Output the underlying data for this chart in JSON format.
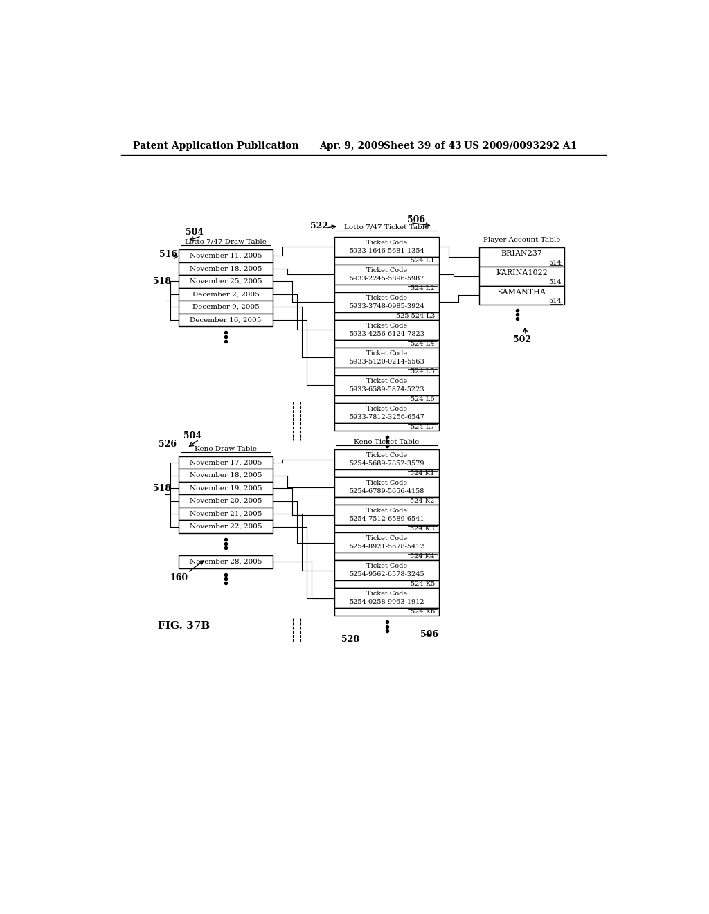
{
  "bg_color": "#ffffff",
  "header_text": "Patent Application Publication",
  "header_date": "Apr. 9, 2009",
  "header_sheet": "Sheet 39 of 43",
  "header_patent": "US 2009/0093292 A1",
  "fig_label": "FIG. 37B",
  "lotto_draw_table": {
    "title": "Lotto 7/47 Draw Table",
    "rows": [
      "November 11, 2005",
      "November 18, 2005",
      "November 25, 2005",
      "December 2, 2005",
      "December 9, 2005",
      "December 16, 2005"
    ]
  },
  "lotto_ticket_table": {
    "title": "Lotto 7/47 Ticket Table",
    "entries": [
      {
        "code": "Ticket Code\n5933-1646-5681-1354",
        "id": "524 L1"
      },
      {
        "code": "Ticket Code\n5933-2245-5896-5987",
        "id": "524 L2"
      },
      {
        "code": "Ticket Code\n5933-3748-0985-3924",
        "id": "525 524 L3"
      },
      {
        "code": "Ticket Code\n5933-4256-6124-7823",
        "id": "524 L4"
      },
      {
        "code": "Ticket Code\n5933-5120-0214-5563",
        "id": "524 L5"
      },
      {
        "code": "Ticket Code\n5933-6589-5874-5223",
        "id": "524 L6"
      },
      {
        "code": "Ticket Code\n5933-7812-3256-6547",
        "id": "524 L7"
      }
    ]
  },
  "player_account_table": {
    "title": "Player Account Table",
    "entries": [
      {
        "name": "BRIAN237",
        "id": "514"
      },
      {
        "name": "KARINA1022",
        "id": "514"
      },
      {
        "name": "SAMANTHA",
        "id": "514"
      }
    ]
  },
  "keno_draw_table": {
    "title": "Keno Draw Table",
    "rows": [
      "November 17, 2005",
      "November 18, 2005",
      "November 19, 2005",
      "November 20, 2005",
      "November 21, 2005",
      "November 22, 2005"
    ],
    "extra_row": "November 28, 2005"
  },
  "keno_ticket_table": {
    "title": "Keno Ticket Table",
    "entries": [
      {
        "code": "Ticket Code\n5254-5689-7852-3579",
        "id": "524 K1"
      },
      {
        "code": "Ticket Code\n5254-6789-5656-4158",
        "id": "524 K2"
      },
      {
        "code": "Ticket Code\n5254-7512-6589-6541",
        "id": "524 K3"
      },
      {
        "code": "Ticket Code\n5254-8921-5678-5412",
        "id": "524 K4"
      },
      {
        "code": "Ticket Code\n5254-9562-6578-3245",
        "id": "524 K5"
      },
      {
        "code": "Ticket Code\n5254-0258-9963-1912",
        "id": "524 K6"
      }
    ]
  }
}
